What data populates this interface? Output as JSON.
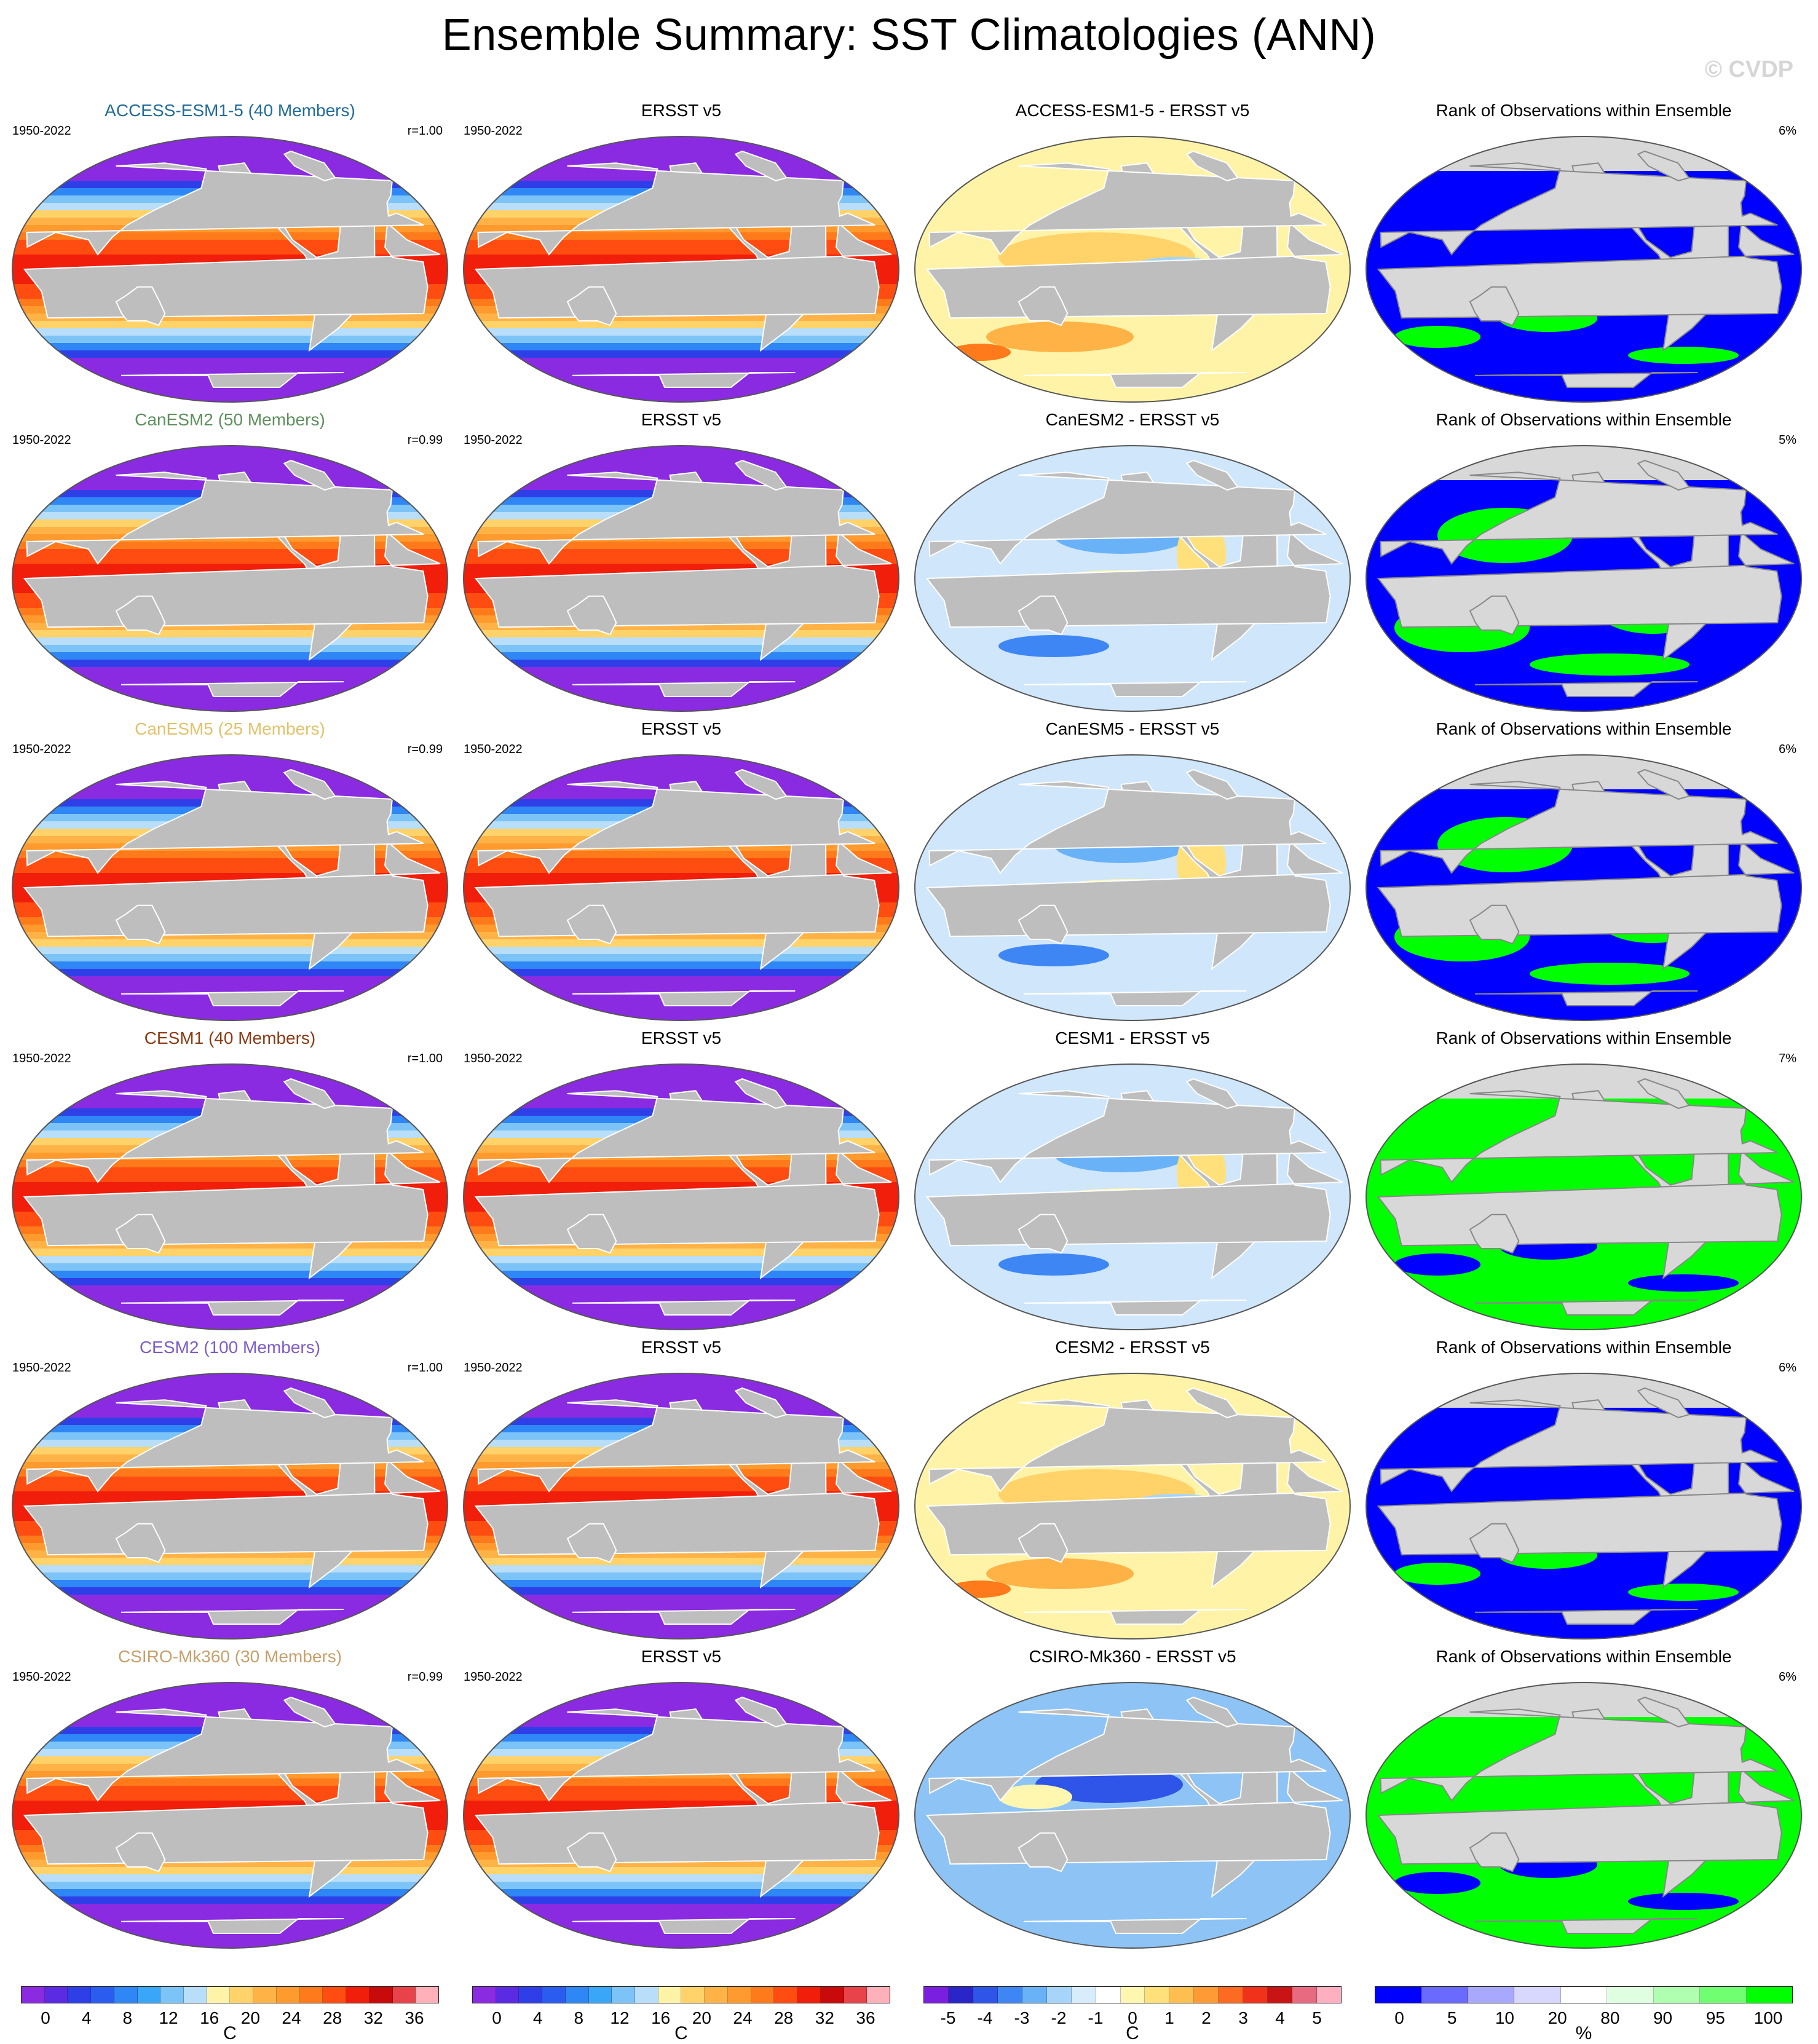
{
  "title": "Ensemble Summary: SST Climatologies (ANN)",
  "watermark": "© CVDP",
  "period": "1950-2022",
  "obs_name": "ERSST v5",
  "rank_title": "Rank of Observations within Ensemble",
  "rows": [
    {
      "model": "ACCESS-ESM1-5 (40 Members)",
      "model_color": "#1f6b9a",
      "corr": "r=1.00",
      "diff_title": "ACCESS-ESM1-5 - ERSST v5",
      "rank_pct": "6%",
      "bias": "warm",
      "rank": "blue"
    },
    {
      "model": "CanESM2 (50 Members)",
      "model_color": "#5e8f5e",
      "corr": "r=0.99",
      "diff_title": "CanESM2 - ERSST v5",
      "rank_pct": "5%",
      "bias": "cool",
      "rank": "mixed"
    },
    {
      "model": "CanESM5 (25 Members)",
      "model_color": "#e2c26a",
      "corr": "r=0.99",
      "diff_title": "CanESM5 - ERSST v5",
      "rank_pct": "6%",
      "bias": "cool",
      "rank": "mixed"
    },
    {
      "model": "CESM1 (40 Members)",
      "model_color": "#8b3a14",
      "corr": "r=1.00",
      "diff_title": "CESM1 - ERSST v5",
      "rank_pct": "7%",
      "bias": "cool",
      "rank": "green"
    },
    {
      "model": "CESM2 (100 Members)",
      "model_color": "#7d5cc8",
      "corr": "r=1.00",
      "diff_title": "CESM2 - ERSST v5",
      "rank_pct": "6%",
      "bias": "warm",
      "rank": "blue"
    },
    {
      "model": "CSIRO-Mk360 (30 Members)",
      "model_color": "#c8a06a",
      "corr": "r=0.99",
      "diff_title": "CSIRO-Mk360 - ERSST v5",
      "rank_pct": "6%",
      "bias": "verycool",
      "rank": "green"
    }
  ],
  "colorbars": [
    {
      "unit": "C",
      "ticks": [
        "0",
        "4",
        "8",
        "12",
        "16",
        "20",
        "24",
        "28",
        "32",
        "36"
      ],
      "colors": [
        "#8a2be2",
        "#5a2be2",
        "#2f3fe8",
        "#2a5cf0",
        "#2f86f5",
        "#3aa6f8",
        "#7cc4f8",
        "#b9defa",
        "#fff3a8",
        "#ffd36a",
        "#ffb347",
        "#ff9a2e",
        "#ff7a1a",
        "#ff4d12",
        "#f01e0a",
        "#c80a0a",
        "#e8424a",
        "#ffb0b8"
      ]
    },
    {
      "unit": "C",
      "ticks": [
        "0",
        "4",
        "8",
        "12",
        "16",
        "20",
        "24",
        "28",
        "32",
        "36"
      ],
      "colors": [
        "#8a2be2",
        "#5a2be2",
        "#2f3fe8",
        "#2a5cf0",
        "#2f86f5",
        "#3aa6f8",
        "#7cc4f8",
        "#b9defa",
        "#fff3a8",
        "#ffd36a",
        "#ffb347",
        "#ff9a2e",
        "#ff7a1a",
        "#ff4d12",
        "#f01e0a",
        "#c80a0a",
        "#e8424a",
        "#ffb0b8"
      ]
    },
    {
      "unit": "C",
      "ticks": [
        "-5",
        "-4",
        "-3",
        "-2",
        "-1",
        "0",
        "1",
        "2",
        "3",
        "4",
        "5"
      ],
      "colors": [
        "#7a1fe0",
        "#2a25c8",
        "#2f55e8",
        "#3f86f5",
        "#6ab2f8",
        "#a6d4fa",
        "#d8ecfc",
        "#ffffff",
        "#fff7b0",
        "#ffe07a",
        "#ffbf50",
        "#ff9a35",
        "#ff6a22",
        "#f0321a",
        "#c81414",
        "#e86a80",
        "#ffb0c0"
      ]
    },
    {
      "unit": "%",
      "ticks": [
        "0",
        "5",
        "10",
        "20",
        "80",
        "90",
        "95",
        "100"
      ],
      "colors": [
        "#0000ff",
        "#6a6aff",
        "#a8a8ff",
        "#d8d8ff",
        "#ffffff",
        "#e0ffe0",
        "#b0ffb0",
        "#70ff70",
        "#00ff00"
      ]
    }
  ]
}
